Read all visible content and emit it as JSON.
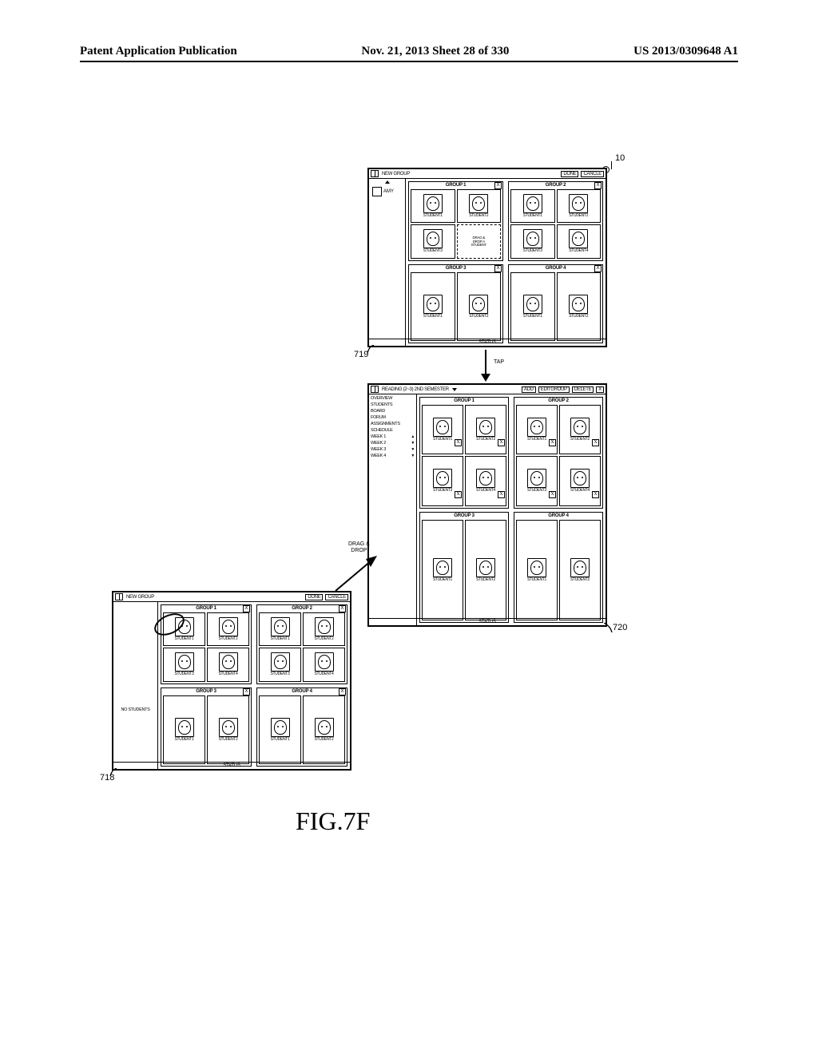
{
  "header": {
    "left": "Patent Application Publication",
    "center": "Nov. 21, 2013  Sheet 28 of 330",
    "right": "US 2013/0309648 A1"
  },
  "figure_label": "FIG.7F",
  "refs": {
    "r10": "10",
    "r718": "718",
    "r719": "719",
    "r720": "720"
  },
  "arrows": {
    "drag_drop": "DRAG &\nDROP",
    "tap": "TAP"
  },
  "panel718": {
    "topbar": {
      "new_group": "NEW GROUP",
      "done": "DONE",
      "cancel": "CANCLE"
    },
    "sidebar": {
      "no_students": "NO STUDENTS"
    },
    "status": "STATUS",
    "groups": [
      {
        "title": "GROUP 1",
        "close": "X",
        "cells": [
          {
            "label": "STUDENT1"
          },
          {
            "label": "STUDENT2"
          },
          {
            "label": "STUDENT3"
          },
          {
            "label": "STUDENT4"
          }
        ]
      },
      {
        "title": "GROUP 2",
        "close": "X",
        "cells": [
          {
            "label": "STUDENT1"
          },
          {
            "label": "STUDENT2"
          },
          {
            "label": "STUDENT3"
          },
          {
            "label": "STUDENT4"
          }
        ]
      },
      {
        "title": "GROUP 3",
        "close": "X",
        "row1": true,
        "cells": [
          {
            "label": "STUDENT1"
          },
          {
            "label": "STUDENT2"
          }
        ]
      },
      {
        "title": "GROUP 4",
        "close": "X",
        "row1": true,
        "cells": [
          {
            "label": "STUDENT1"
          },
          {
            "label": "STUDENT2"
          }
        ]
      }
    ]
  },
  "panel719": {
    "topbar": {
      "new_group": "NEW GROUP",
      "done": "DONE",
      "cancel": "CANCLE"
    },
    "sidebar_name": "AMY",
    "status": "STATUS",
    "dropcell": "DRAG &\nDROP A\nSTUDENT",
    "groups": [
      {
        "title": "GROUP 1",
        "close": "X",
        "cells": [
          {
            "label": "STUDENT1"
          },
          {
            "label": "STUDENT2"
          },
          {
            "label": "STUDENT3"
          },
          {
            "drop": true
          }
        ]
      },
      {
        "title": "GROUP 2",
        "close": "X",
        "cells": [
          {
            "label": "STUDENT1"
          },
          {
            "label": "STUDENT2"
          },
          {
            "label": "STUDENT3"
          },
          {
            "label": "STUDENT4"
          }
        ]
      },
      {
        "title": "GROUP 3",
        "close": "X",
        "row1": true,
        "cells": [
          {
            "label": "STUDENT1"
          },
          {
            "label": "STUDENT2"
          }
        ]
      },
      {
        "title": "GROUP 4",
        "close": "X",
        "row1": true,
        "cells": [
          {
            "label": "STUDENT1"
          },
          {
            "label": "STUDENT2"
          }
        ]
      }
    ]
  },
  "panel720": {
    "topbar": {
      "title_prefix": "READING (2~3) 2ND SEMESTER",
      "add": "ADD",
      "editgroup": "EDITGROUP",
      "delete": "DELETE",
      "close": "X"
    },
    "sidebar": {
      "items": [
        "OVERVIEW",
        "STUDENTS",
        "BOARD",
        "FORUM",
        "ASSIGNMENTS",
        "SCHEDULE"
      ],
      "weeks": [
        "WEEK 1",
        "WEEK 2",
        "WEEK 3",
        "WEEK 4"
      ]
    },
    "status": "STATUS",
    "groups": [
      {
        "title": "GROUP 1",
        "cells": [
          {
            "label": "STUDENT1",
            "check": "X"
          },
          {
            "label": "STUDENT2",
            "check": "X"
          },
          {
            "label": "STUDENT3",
            "check": "X"
          },
          {
            "label": "STUDENT4",
            "check": "X"
          }
        ]
      },
      {
        "title": "GROUP 2",
        "cells": [
          {
            "label": "STUDENT1",
            "check": "X"
          },
          {
            "label": "STUDENT2",
            "check": "X"
          },
          {
            "label": "STUDENT3",
            "check": "X"
          },
          {
            "label": "STUDENT4",
            "check": "X"
          }
        ]
      },
      {
        "title": "GROUP 3",
        "row1": true,
        "cells": [
          {
            "label": "STUDENT1"
          },
          {
            "label": "STUDENT2"
          }
        ]
      },
      {
        "title": "GROUP 4",
        "row1": true,
        "cells": [
          {
            "label": "STUDENT1"
          },
          {
            "label": "STUDENT2"
          }
        ]
      }
    ]
  }
}
